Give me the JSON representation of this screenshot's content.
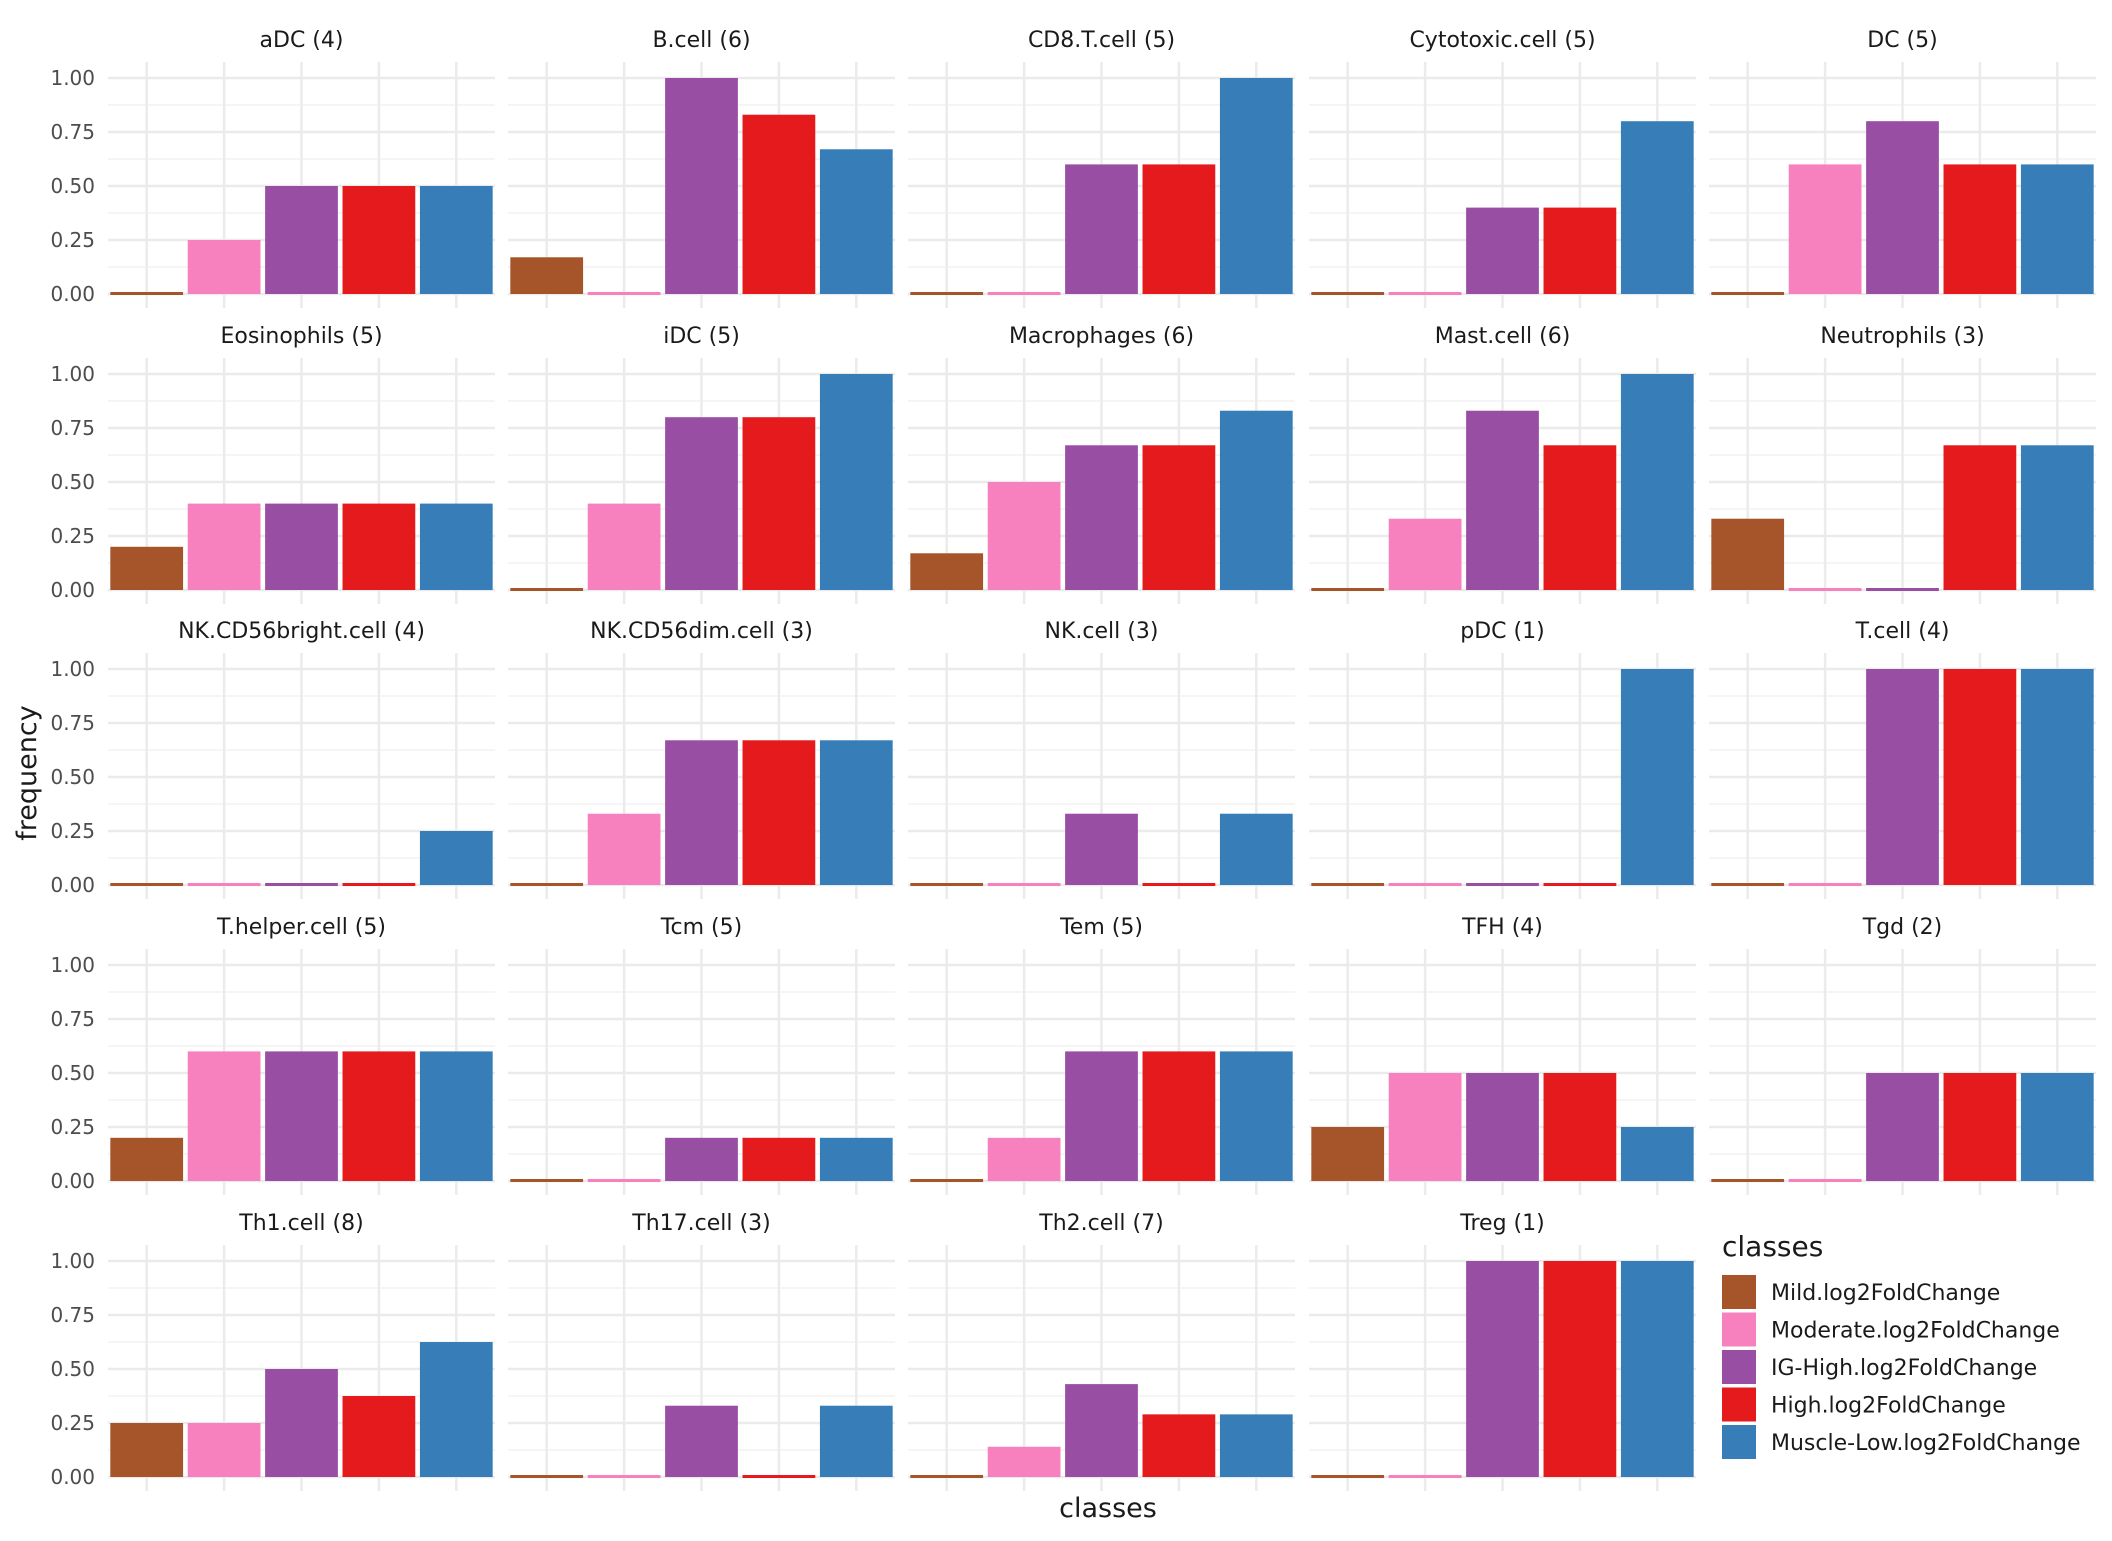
{
  "chart_data": {
    "type": "bar",
    "xlabel": "classes",
    "ylabel": "frequency",
    "ylim": [
      0,
      1
    ],
    "yticks": [
      "0.00",
      "0.25",
      "0.50",
      "0.75",
      "1.00"
    ],
    "grid": true,
    "legend": {
      "title": "classes",
      "placement": "bottom-right",
      "entries": [
        {
          "name": "Mild.log2FoldChange",
          "color": "#A6542A"
        },
        {
          "name": "Moderate.log2FoldChange",
          "color": "#F781BF"
        },
        {
          "name": "IG-High.log2FoldChange",
          "color": "#984EA3"
        },
        {
          "name": "High.log2FoldChange",
          "color": "#E41A1C"
        },
        {
          "name": "Muscle-Low.log2FoldChange",
          "color": "#377EB8"
        }
      ]
    },
    "panels": [
      {
        "title": "aDC (4)",
        "values": [
          0.0,
          0.25,
          0.5,
          0.5,
          0.5
        ]
      },
      {
        "title": "B.cell (6)",
        "values": [
          0.17,
          0.0,
          1.0,
          0.83,
          0.67
        ]
      },
      {
        "title": "CD8.T.cell (5)",
        "values": [
          0.0,
          0.0,
          0.6,
          0.6,
          1.0
        ]
      },
      {
        "title": "Cytotoxic.cell (5)",
        "values": [
          0.0,
          0.0,
          0.4,
          0.4,
          0.8
        ]
      },
      {
        "title": "DC (5)",
        "values": [
          0.0,
          0.6,
          0.8,
          0.6,
          0.6
        ]
      },
      {
        "title": "Eosinophils (5)",
        "values": [
          0.2,
          0.4,
          0.4,
          0.4,
          0.4
        ]
      },
      {
        "title": "iDC (5)",
        "values": [
          0.0,
          0.4,
          0.8,
          0.8,
          1.0
        ]
      },
      {
        "title": "Macrophages (6)",
        "values": [
          0.17,
          0.5,
          0.67,
          0.67,
          0.83
        ]
      },
      {
        "title": "Mast.cell (6)",
        "values": [
          0.0,
          0.33,
          0.83,
          0.67,
          1.0
        ]
      },
      {
        "title": "Neutrophils (3)",
        "values": [
          0.33,
          0.0,
          0.0,
          0.67,
          0.67
        ]
      },
      {
        "title": "NK.CD56bright.cell (4)",
        "values": [
          0.0,
          0.0,
          0.0,
          0.0,
          0.25
        ]
      },
      {
        "title": "NK.CD56dim.cell (3)",
        "values": [
          0.0,
          0.33,
          0.67,
          0.67,
          0.67
        ]
      },
      {
        "title": "NK.cell (3)",
        "values": [
          0.0,
          0.0,
          0.33,
          0.0,
          0.33
        ]
      },
      {
        "title": "pDC (1)",
        "values": [
          0.0,
          0.0,
          0.0,
          0.0,
          1.0
        ]
      },
      {
        "title": "T.cell (4)",
        "values": [
          0.0,
          0.0,
          1.0,
          1.0,
          1.0
        ]
      },
      {
        "title": "T.helper.cell (5)",
        "values": [
          0.2,
          0.6,
          0.6,
          0.6,
          0.6
        ]
      },
      {
        "title": "Tcm (5)",
        "values": [
          0.0,
          0.0,
          0.2,
          0.2,
          0.2
        ]
      },
      {
        "title": "Tem (5)",
        "values": [
          0.0,
          0.2,
          0.6,
          0.6,
          0.6
        ]
      },
      {
        "title": "TFH (4)",
        "values": [
          0.25,
          0.5,
          0.5,
          0.5,
          0.25
        ]
      },
      {
        "title": "Tgd (2)",
        "values": [
          0.0,
          0.0,
          0.5,
          0.5,
          0.5
        ]
      },
      {
        "title": "Th1.cell (8)",
        "values": [
          0.25,
          0.25,
          0.5,
          0.375,
          0.625
        ]
      },
      {
        "title": "Th17.cell (3)",
        "values": [
          0.0,
          0.0,
          0.33,
          0.0,
          0.33
        ]
      },
      {
        "title": "Th2.cell (7)",
        "values": [
          0.0,
          0.14,
          0.43,
          0.29,
          0.29
        ]
      },
      {
        "title": "Treg (1)",
        "values": [
          0.0,
          0.0,
          1.0,
          1.0,
          1.0
        ]
      }
    ]
  }
}
